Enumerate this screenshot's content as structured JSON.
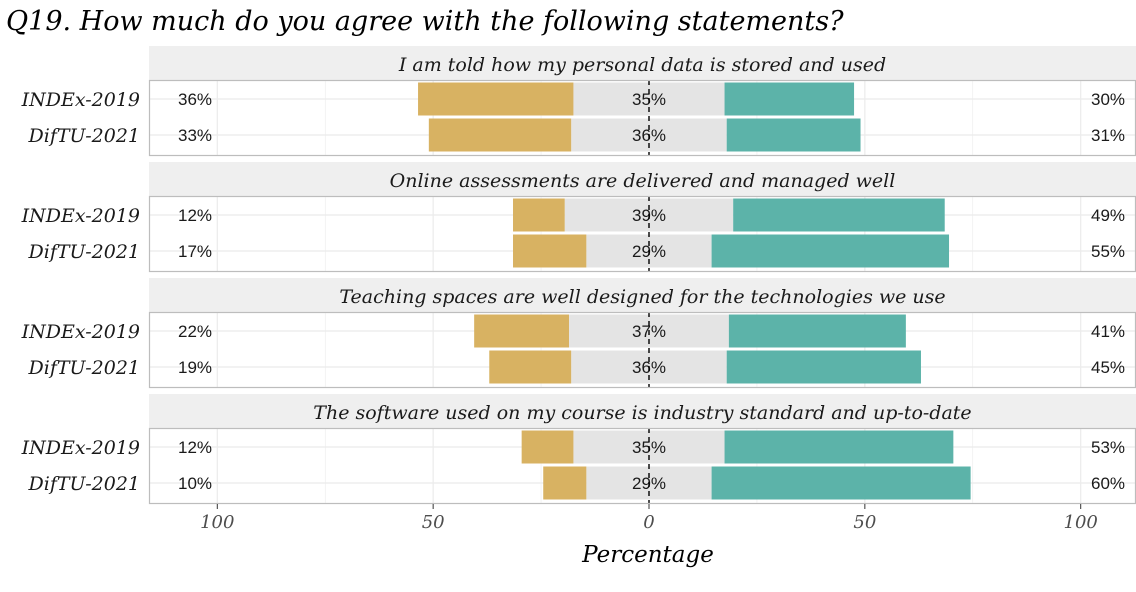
{
  "chart_data": {
    "type": "bar",
    "subtype": "diverging-stacked-likert",
    "title": "Q19. How much do you agree with the following statements?",
    "xlabel": "Percentage",
    "ylabel": "",
    "xlim": [
      -100,
      100
    ],
    "x_ticks": [
      {
        "value": -100,
        "label": "100"
      },
      {
        "value": -50,
        "label": "50"
      },
      {
        "value": 0,
        "label": "0"
      },
      {
        "value": 50,
        "label": "50"
      },
      {
        "value": 100,
        "label": "100"
      }
    ],
    "grid": true,
    "legend": "none",
    "colors": {
      "disagree": "#d8b262",
      "neutral": "#e4e4e4",
      "agree": "#5cb3a9",
      "strip": "#efefef",
      "panel_border": "#bdbdbd",
      "grid": "#ebebeb"
    },
    "panels": [
      {
        "title": "I am told how my personal data is stored and used",
        "rows": [
          {
            "label": "INDEx-2019",
            "disagree": 36,
            "neutral": 35,
            "agree": 30,
            "disagree_label": "36%",
            "neutral_label": "35%",
            "agree_label": "30%"
          },
          {
            "label": "DifTU-2021",
            "disagree": 33,
            "neutral": 36,
            "agree": 31,
            "disagree_label": "33%",
            "neutral_label": "36%",
            "agree_label": "31%"
          }
        ]
      },
      {
        "title": "Online assessments are delivered and managed well",
        "rows": [
          {
            "label": "INDEx-2019",
            "disagree": 12,
            "neutral": 39,
            "agree": 49,
            "disagree_label": "12%",
            "neutral_label": "39%",
            "agree_label": "49%"
          },
          {
            "label": "DifTU-2021",
            "disagree": 17,
            "neutral": 29,
            "agree": 55,
            "disagree_label": "17%",
            "neutral_label": "29%",
            "agree_label": "55%"
          }
        ]
      },
      {
        "title": "Teaching spaces are well designed for the technologies we use",
        "rows": [
          {
            "label": "INDEx-2019",
            "disagree": 22,
            "neutral": 37,
            "agree": 41,
            "disagree_label": "22%",
            "neutral_label": "37%",
            "agree_label": "41%"
          },
          {
            "label": "DifTU-2021",
            "disagree": 19,
            "neutral": 36,
            "agree": 45,
            "disagree_label": "19%",
            "neutral_label": "36%",
            "agree_label": "45%"
          }
        ]
      },
      {
        "title": "The software used on my course is industry standard and up-to-date",
        "rows": [
          {
            "label": "INDEx-2019",
            "disagree": 12,
            "neutral": 35,
            "agree": 53,
            "disagree_label": "12%",
            "neutral_label": "35%",
            "agree_label": "53%"
          },
          {
            "label": "DifTU-2021",
            "disagree": 10,
            "neutral": 29,
            "agree": 60,
            "disagree_label": "10%",
            "neutral_label": "29%",
            "agree_label": "60%"
          }
        ]
      }
    ]
  }
}
